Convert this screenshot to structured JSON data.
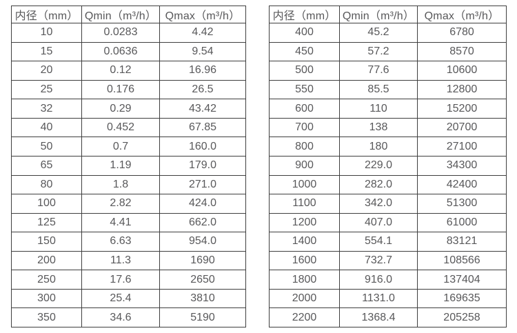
{
  "colors": {
    "text": "#58585a",
    "border": "#3e3e3e",
    "background": "#ffffff"
  },
  "tables": [
    {
      "name": "flow-table-small-diameters",
      "headers": [
        "内径（mm）",
        "Qmin（m³/h）",
        "Qmax（m³/h）"
      ],
      "rows": [
        [
          "10",
          "0.0283",
          "4.42"
        ],
        [
          "15",
          "0.0636",
          "9.54"
        ],
        [
          "20",
          "0.12",
          "16.96"
        ],
        [
          "25",
          "0.176",
          "26.5"
        ],
        [
          "32",
          "0.29",
          "43.42"
        ],
        [
          "40",
          "0.452",
          "67.85"
        ],
        [
          "50",
          "0.7",
          "160.0"
        ],
        [
          "65",
          "1.19",
          "179.0"
        ],
        [
          "80",
          "1.8",
          "271.0"
        ],
        [
          "100",
          "2.82",
          "424.0"
        ],
        [
          "125",
          "4.41",
          "662.0"
        ],
        [
          "150",
          "6.63",
          "954.0"
        ],
        [
          "200",
          "11.3",
          "1690"
        ],
        [
          "250",
          "17.6",
          "2650"
        ],
        [
          "300",
          "25.4",
          "3810"
        ],
        [
          "350",
          "34.6",
          "5190"
        ]
      ]
    },
    {
      "name": "flow-table-large-diameters",
      "headers": [
        "内径（mm）",
        "Qmin（m³/h）",
        "Qmax（m³/h）"
      ],
      "rows": [
        [
          "400",
          "45.2",
          "6780"
        ],
        [
          "450",
          "57.2",
          "8570"
        ],
        [
          "500",
          "77.6",
          "10600"
        ],
        [
          "550",
          "85.5",
          "12800"
        ],
        [
          "600",
          "110",
          "15200"
        ],
        [
          "700",
          "138",
          "20700"
        ],
        [
          "800",
          "180",
          "27100"
        ],
        [
          "900",
          "229.0",
          "34300"
        ],
        [
          "1000",
          "282.0",
          "42400"
        ],
        [
          "1100",
          "342.0",
          "51300"
        ],
        [
          "1200",
          "407.0",
          "61000"
        ],
        [
          "1400",
          "554.1",
          "83121"
        ],
        [
          "1600",
          "732.7",
          "108566"
        ],
        [
          "1800",
          "916.0",
          "137404"
        ],
        [
          "2000",
          "1131.0",
          "169635"
        ],
        [
          "2200",
          "1368.4",
          "205258"
        ]
      ]
    }
  ]
}
